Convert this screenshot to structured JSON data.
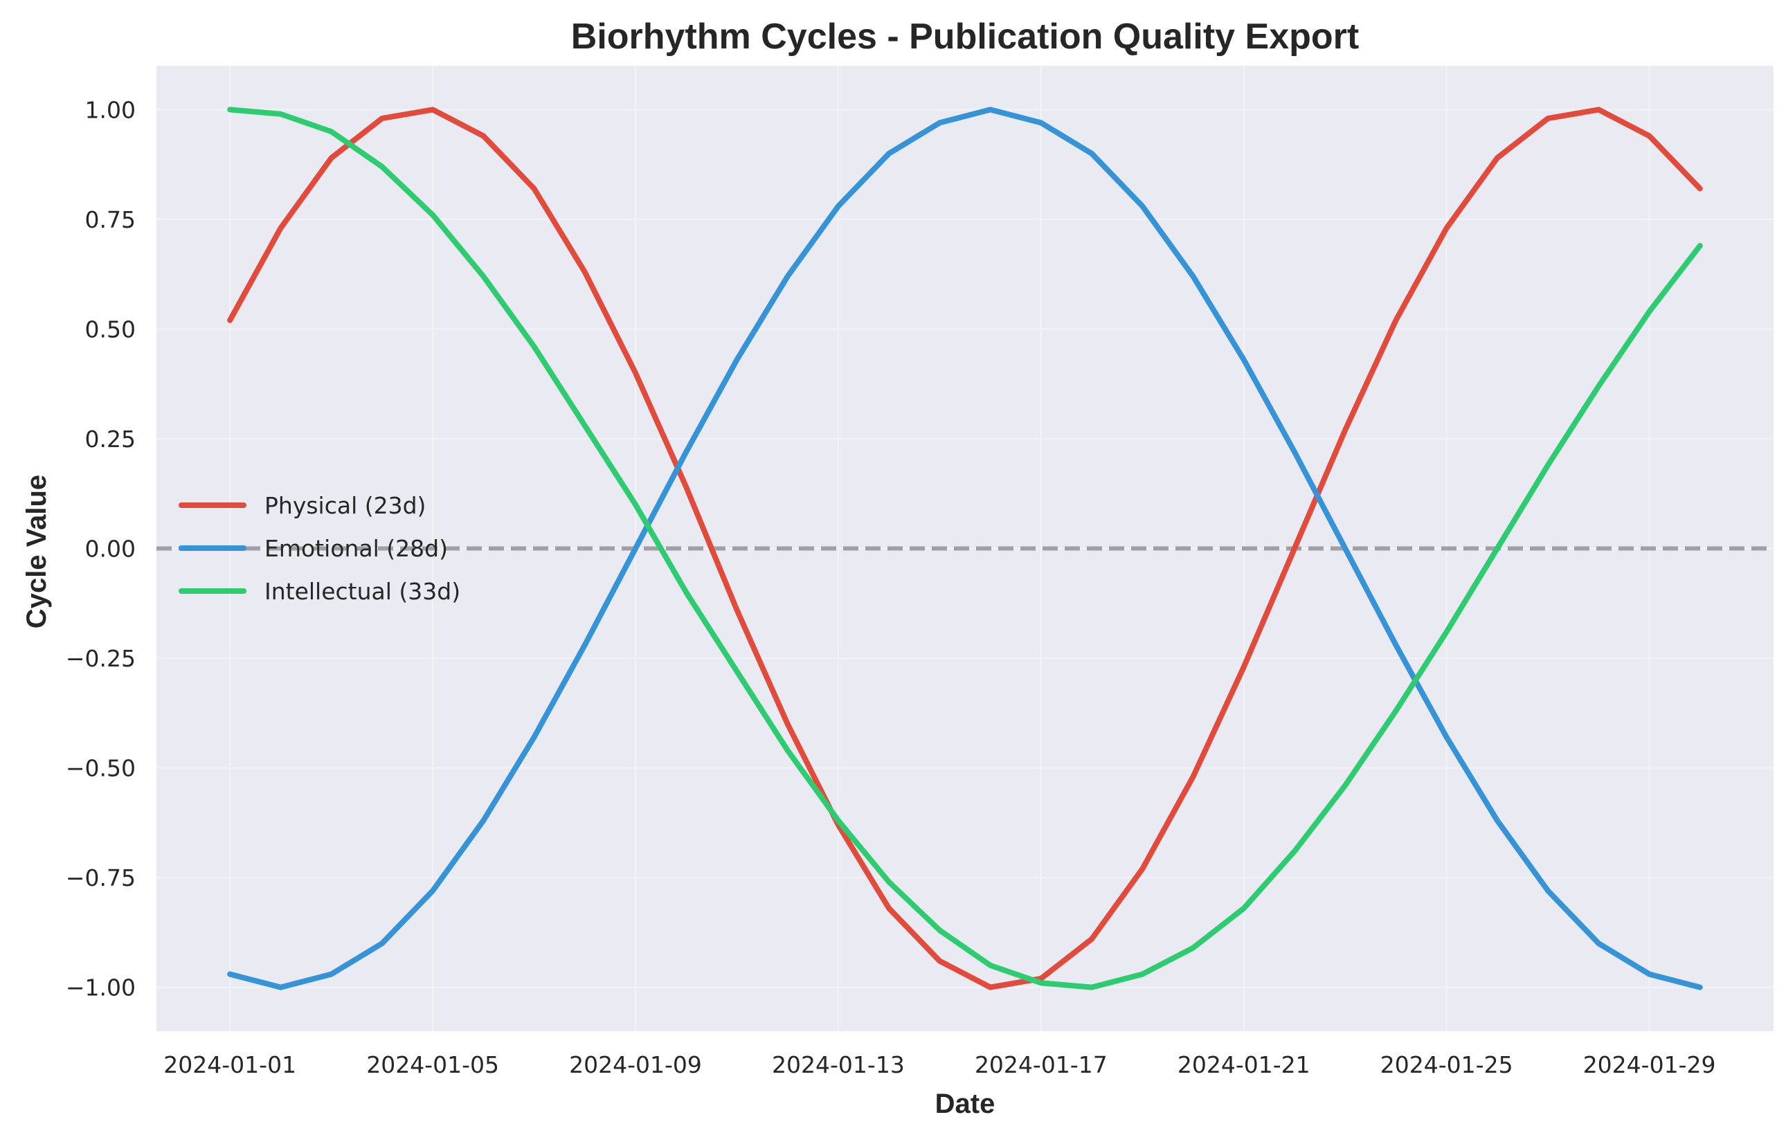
{
  "chart_data": {
    "type": "line",
    "title": "Biorhythm Cycles - Publication Quality Export",
    "xlabel": "Date",
    "ylabel": "Cycle Value",
    "x": [
      "2024-01-01",
      "2024-01-02",
      "2024-01-03",
      "2024-01-04",
      "2024-01-05",
      "2024-01-06",
      "2024-01-07",
      "2024-01-08",
      "2024-01-09",
      "2024-01-10",
      "2024-01-11",
      "2024-01-12",
      "2024-01-13",
      "2024-01-14",
      "2024-01-15",
      "2024-01-16",
      "2024-01-17",
      "2024-01-18",
      "2024-01-19",
      "2024-01-20",
      "2024-01-21",
      "2024-01-22",
      "2024-01-23",
      "2024-01-24",
      "2024-01-25",
      "2024-01-26",
      "2024-01-27",
      "2024-01-28",
      "2024-01-29",
      "2024-01-30"
    ],
    "x_ticks": [
      "2024-01-01",
      "2024-01-05",
      "2024-01-09",
      "2024-01-13",
      "2024-01-17",
      "2024-01-21",
      "2024-01-25",
      "2024-01-29"
    ],
    "xlim": [
      "2023-12-30.55",
      "2024-01-31.45"
    ],
    "ylim": [
      -1.1,
      1.1
    ],
    "y_ticks": [
      1.0,
      0.75,
      0.5,
      0.25,
      0.0,
      -0.25,
      -0.5,
      -0.75,
      -1.0
    ],
    "y_tick_labels": [
      "1.00",
      "0.75",
      "0.50",
      "0.25",
      "0.00",
      "−0.25",
      "−0.50",
      "−0.75",
      "−1.00"
    ],
    "grid": true,
    "legend_position": "center-left",
    "reference_line": {
      "y": 0.0,
      "style": "dashed",
      "color": "#a0a0a4"
    },
    "background": "#eaeaf2",
    "series": [
      {
        "name": "Physical (23d)",
        "color": "#e24a3b",
        "values": [
          0.52,
          0.73,
          0.89,
          0.98,
          1.0,
          0.94,
          0.82,
          0.63,
          0.4,
          0.14,
          -0.14,
          -0.4,
          -0.63,
          -0.82,
          -0.94,
          -1.0,
          -0.98,
          -0.89,
          -0.73,
          -0.52,
          -0.27,
          0.0,
          0.27,
          0.52,
          0.73,
          0.89,
          0.98,
          1.0,
          0.94,
          0.82
        ]
      },
      {
        "name": "Emotional (28d)",
        "color": "#3593d8",
        "values": [
          -0.97,
          -1.0,
          -0.97,
          -0.9,
          -0.78,
          -0.62,
          -0.43,
          -0.22,
          0.0,
          0.22,
          0.43,
          0.62,
          0.78,
          0.9,
          0.97,
          1.0,
          0.97,
          0.9,
          0.78,
          0.62,
          0.43,
          0.22,
          0.0,
          -0.22,
          -0.43,
          -0.62,
          -0.78,
          -0.9,
          -0.97,
          -1.0
        ]
      },
      {
        "name": "Intellectual (33d)",
        "color": "#2ecc71",
        "values": [
          1.0,
          0.99,
          0.95,
          0.87,
          0.76,
          0.62,
          0.46,
          0.28,
          0.1,
          -0.1,
          -0.28,
          -0.46,
          -0.62,
          -0.76,
          -0.87,
          -0.95,
          -0.99,
          -1.0,
          -0.97,
          -0.91,
          -0.82,
          -0.69,
          -0.54,
          -0.37,
          -0.19,
          0.0,
          0.19,
          0.37,
          0.54,
          0.69
        ]
      }
    ]
  }
}
